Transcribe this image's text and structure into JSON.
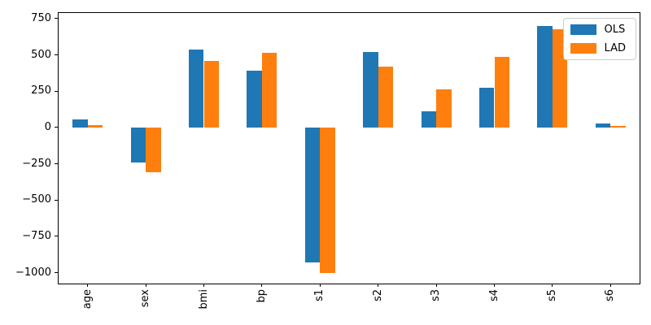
{
  "chart_data": {
    "type": "bar",
    "title": "",
    "xlabel": "",
    "ylabel": "",
    "categories": [
      "age",
      "sex",
      "bmi",
      "bp",
      "s1",
      "s2",
      "s3",
      "s4",
      "s5",
      "s6"
    ],
    "series": [
      {
        "name": "OLS",
        "color": "#1f77b4",
        "values": [
          56,
          -243,
          537,
          389,
          -927,
          518,
          114,
          272,
          699,
          28
        ]
      },
      {
        "name": "LAD",
        "color": "#ff7f0e",
        "values": [
          17,
          -310,
          458,
          514,
          -1001,
          419,
          262,
          486,
          677,
          11
        ]
      }
    ],
    "ylim": [
      -1075,
      789
    ],
    "yticks": {
      "values": [
        750,
        500,
        250,
        0,
        -250,
        -500,
        -750,
        -1000
      ],
      "labels": [
        "750",
        "500",
        "250",
        "0",
        "−250",
        "−500",
        "−750",
        "−1000"
      ]
    },
    "x_tick_rotation_deg": 90,
    "grid": false,
    "legend": {
      "position": "upper-right",
      "entries": [
        "OLS",
        "LAD"
      ]
    },
    "axis_color": "#000000",
    "background": "#ffffff"
  }
}
